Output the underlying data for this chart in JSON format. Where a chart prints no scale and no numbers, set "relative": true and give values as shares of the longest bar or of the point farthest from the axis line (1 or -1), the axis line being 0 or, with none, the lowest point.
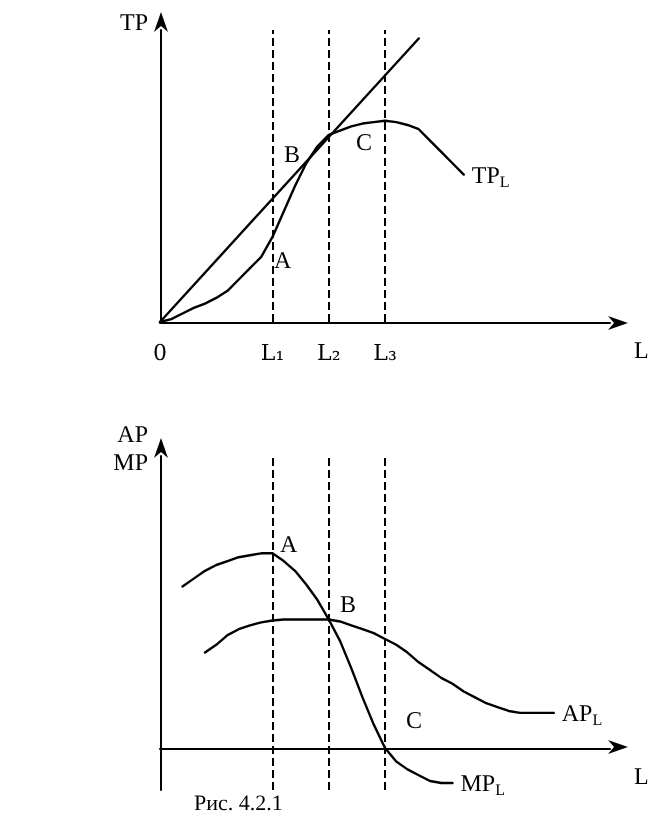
{
  "chart_data": [
    {
      "type": "line",
      "relative": true,
      "xlabel": "L",
      "ylabel": "TP",
      "marker": "none",
      "line_style": "solid",
      "grid": false,
      "legend": false,
      "categories": [
        "0",
        null,
        null,
        null,
        null,
        null,
        null,
        null,
        null,
        null,
        "L₁",
        null,
        null,
        null,
        null,
        "L₂",
        null,
        null,
        null,
        null,
        "L₃",
        null,
        null,
        null,
        null,
        null,
        null,
        null,
        null,
        null,
        null,
        null,
        null,
        null,
        null,
        null,
        null,
        null,
        null,
        null,
        null
      ],
      "series": [
        {
          "name": "TP$_{L}$",
          "color": "#000000",
          "values": [
            0,
            0.01,
            0.03,
            0.05,
            0.065,
            0.085,
            0.11,
            0.15,
            0.19,
            0.23,
            0.3,
            0.39,
            0.48,
            0.56,
            0.62,
            0.66,
            0.675,
            0.69,
            0.7,
            0.705,
            0.71,
            0.705,
            0.695,
            0.68,
            0.64,
            0.6,
            0.56,
            0.52,
            null,
            null,
            null,
            null,
            null,
            null,
            null,
            null,
            null,
            null,
            null,
            null,
            null
          ]
        },
        {
          "color": "#000000",
          "values": [
            0,
            null,
            null,
            null,
            null,
            null,
            null,
            null,
            null,
            null,
            null,
            null,
            null,
            null,
            null,
            null,
            null,
            null,
            null,
            null,
            null,
            null,
            null,
            1,
            null,
            null,
            null,
            null,
            null,
            null,
            null,
            null,
            null,
            null,
            null,
            null,
            null,
            null,
            null,
            null,
            null
          ]
        }
      ],
      "ref_lines": [
        {
          "axis": "x",
          "value": "L₁",
          "color": "#000000",
          "line_style": "dashed"
        },
        {
          "axis": "x",
          "value": "L₂",
          "color": "#000000",
          "line_style": "dashed"
        },
        {
          "axis": "x",
          "value": "L₃",
          "color": "#000000",
          "line_style": "dashed"
        }
      ],
      "annotations": [
        "A",
        "B",
        "C"
      ]
    },
    {
      "type": "line",
      "relative": true,
      "xlabel": "L",
      "ylabel": "AP\nMP",
      "tick_labels": false,
      "marker": "none",
      "line_style": "solid",
      "grid": false,
      "legend": false,
      "categories": [
        "0",
        null,
        null,
        null,
        null,
        null,
        null,
        null,
        null,
        null,
        "L₁",
        null,
        null,
        null,
        null,
        "L₂",
        null,
        null,
        null,
        null,
        "L₃",
        null,
        null,
        null,
        null,
        null,
        null,
        null,
        null,
        null,
        null,
        null,
        null,
        null,
        null,
        null,
        null,
        null,
        null,
        null,
        null
      ],
      "series": [
        {
          "name": "MP$_{L}$",
          "color": "#000000",
          "values": [
            null,
            null,
            0.83,
            0.87,
            0.91,
            0.94,
            0.96,
            0.98,
            0.99,
            1.0,
            1.0,
            0.96,
            0.91,
            0.84,
            0.76,
            0.66,
            0.55,
            0.41,
            0.26,
            0.12,
            0,
            -0.07,
            -0.11,
            -0.14,
            -0.17,
            -0.18,
            -0.18,
            null,
            null,
            null,
            null,
            null,
            null,
            null,
            null,
            null,
            null,
            null,
            null,
            null,
            null
          ]
        },
        {
          "name": "AP$_{L}$",
          "color": "#000000",
          "values": [
            null,
            null,
            null,
            null,
            0.49,
            0.53,
            0.58,
            0.61,
            0.63,
            0.645,
            0.655,
            0.66,
            0.66,
            0.66,
            0.66,
            0.66,
            0.65,
            0.63,
            0.61,
            0.59,
            0.56,
            0.53,
            0.49,
            0.44,
            0.4,
            0.36,
            0.33,
            0.29,
            0.26,
            0.23,
            0.21,
            0.19,
            0.18,
            0.18,
            0.18,
            0.18,
            null,
            null,
            null,
            null,
            null
          ]
        }
      ],
      "ref_lines": [
        {
          "axis": "x",
          "value": "L₁",
          "color": "#000000",
          "line_style": "dashed"
        },
        {
          "axis": "x",
          "value": "L₂",
          "color": "#000000",
          "line_style": "dashed"
        },
        {
          "axis": "x",
          "value": "L₃",
          "color": "#000000",
          "line_style": "dashed"
        }
      ],
      "annotations": [
        "A",
        "B",
        "C",
        "Рис. 4.2.1"
      ]
    }
  ]
}
